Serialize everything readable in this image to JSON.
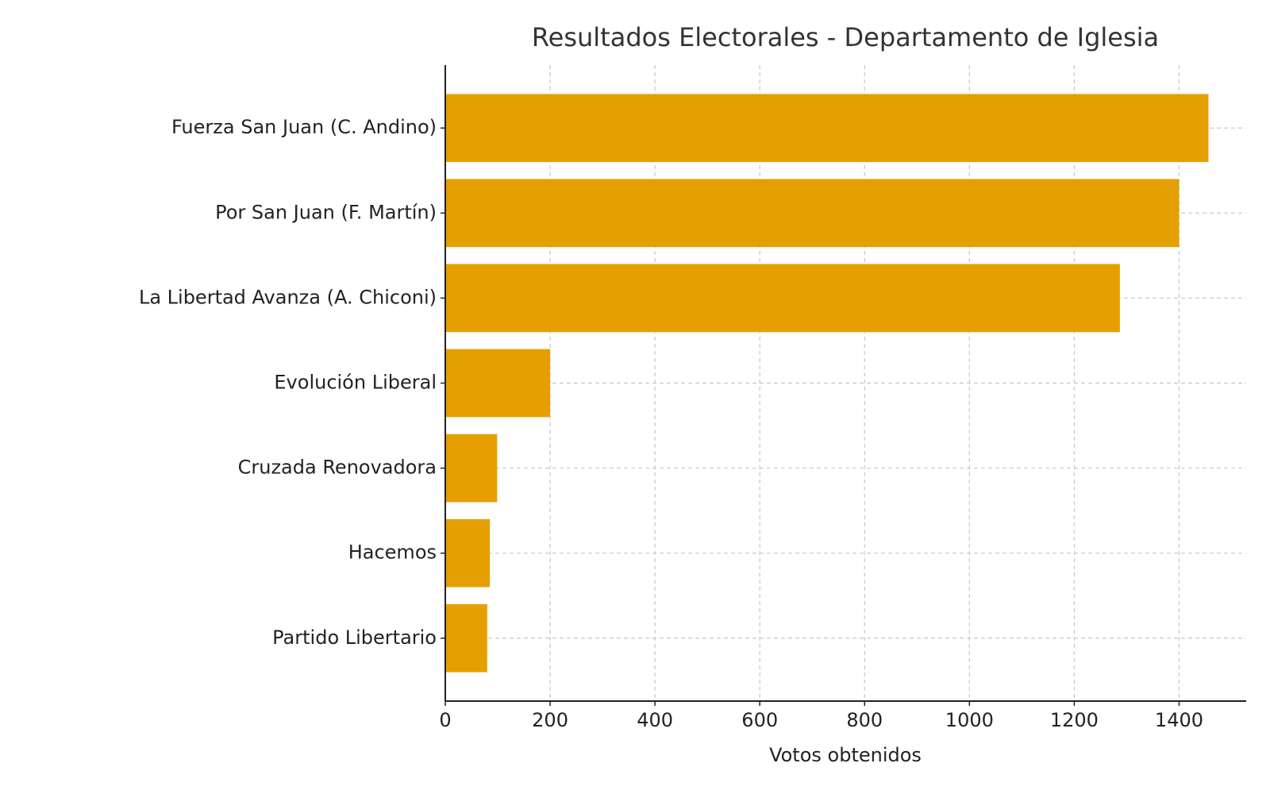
{
  "chart_data": {
    "type": "barh",
    "title": "Resultados Electorales - Departamento de Iglesia",
    "xlabel": "Votos obtenidos",
    "categories": [
      "Fuerza San Juan (C. Andino)",
      "Por San Juan (F. Martín)",
      "La Libertad Avanza (A. Chiconi)",
      "Evolución Liberal",
      "Cruzada Renovadora",
      "Hacemos",
      "Partido Libertario"
    ],
    "values": [
      1456,
      1400,
      1287,
      200,
      99,
      85,
      80
    ],
    "color": "#e69f00",
    "xlim": [
      0,
      1528
    ],
    "xticks": [
      0,
      200,
      400,
      600,
      800,
      1000,
      1200,
      1400
    ],
    "grid": true
  }
}
